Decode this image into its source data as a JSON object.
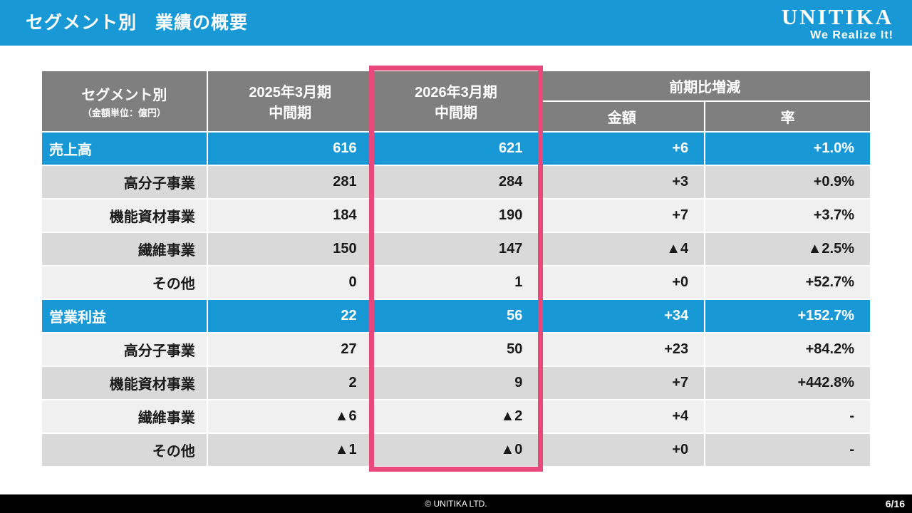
{
  "title_bar": {
    "title": "セグメント別　業績の概要",
    "logo_text": "UNITIKA",
    "logo_tagline": "We Realize It!"
  },
  "table": {
    "header": {
      "segment": "セグメント別",
      "segment_unit": "（金額単位：億円）",
      "fy2025_line1": "2025年3月期",
      "fy2025_line2": "中間期",
      "fy2026_line1": "2026年3月期",
      "fy2026_line2": "中間期",
      "yoy_group": "前期比増減",
      "yoy_amount": "金額",
      "yoy_rate": "率"
    },
    "rows": [
      {
        "label": "売上高",
        "fy2025": "616",
        "fy2026": "621",
        "amount": "+6",
        "rate": "+1.0%"
      },
      {
        "label": "高分子事業",
        "fy2025": "281",
        "fy2026": "284",
        "amount": "+3",
        "rate": "+0.9%"
      },
      {
        "label": "機能資材事業",
        "fy2025": "184",
        "fy2026": "190",
        "amount": "+7",
        "rate": "+3.7%"
      },
      {
        "label": "繊維事業",
        "fy2025": "150",
        "fy2026": "147",
        "amount": "▲4",
        "rate": "▲2.5%"
      },
      {
        "label": "その他",
        "fy2025": "0",
        "fy2026": "1",
        "amount": "+0",
        "rate": "+52.7%"
      },
      {
        "label": "営業利益",
        "fy2025": "22",
        "fy2026": "56",
        "amount": "+34",
        "rate": "+152.7%"
      },
      {
        "label": "高分子事業",
        "fy2025": "27",
        "fy2026": "50",
        "amount": "+23",
        "rate": "+84.2%"
      },
      {
        "label": "機能資材事業",
        "fy2025": "2",
        "fy2026": "9",
        "amount": "+7",
        "rate": "+442.8%"
      },
      {
        "label": "繊維事業",
        "fy2025": "▲6",
        "fy2026": "▲2",
        "amount": "+4",
        "rate": "-"
      },
      {
        "label": "その他",
        "fy2025": "▲1",
        "fy2026": "▲0",
        "amount": "+0",
        "rate": "-"
      }
    ]
  },
  "footer": {
    "copyright": "© UNITIKA LTD.",
    "page": "6/16"
  },
  "colors": {
    "accent_blue": "#1899d6",
    "header_gray": "#7f7f7f",
    "row_dark": "#d9d9d9",
    "row_light": "#f0f0f0",
    "highlight_pink": "#e8487c",
    "footer_black": "#000000"
  }
}
